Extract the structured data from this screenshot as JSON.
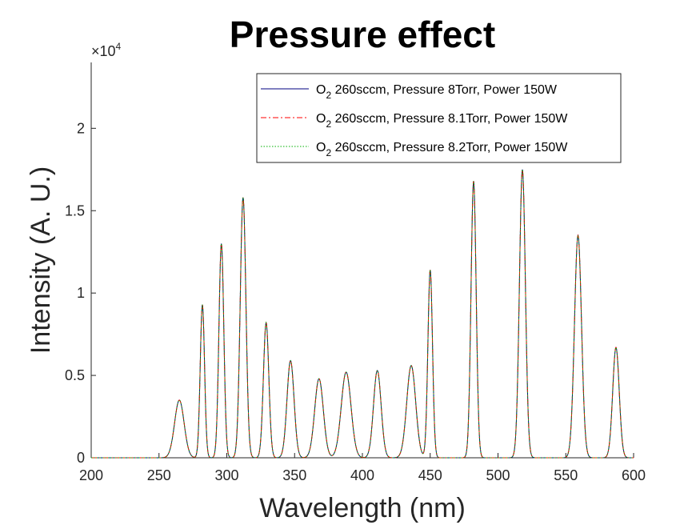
{
  "chart_data": {
    "type": "line",
    "title": "Pressure effect",
    "xlabel": "Wavelength (nm)",
    "ylabel": "Intensity (A. U.)",
    "xlim": [
      200,
      600
    ],
    "ylim": [
      0,
      24000
    ],
    "y_exponent_label": "×10⁴",
    "y_exponent_base": "×10",
    "y_exponent_power": "4",
    "xticks": [
      "200",
      "250",
      "300",
      "350",
      "400",
      "450",
      "500",
      "550",
      "600"
    ],
    "yticks": [
      "0",
      "0.5",
      "1",
      "1.5",
      "2"
    ],
    "xtick_values": [
      200,
      250,
      300,
      350,
      400,
      450,
      500,
      550,
      600
    ],
    "ytick_values": [
      0,
      5000,
      10000,
      15000,
      20000
    ],
    "grid": false,
    "legend_position": "top-right",
    "peaks": [
      {
        "x": 265,
        "y": 3500,
        "w": 3.5
      },
      {
        "x": 282,
        "y": 9300,
        "w": 1.6
      },
      {
        "x": 296,
        "y": 13000,
        "w": 1.8
      },
      {
        "x": 312,
        "y": 15800,
        "w": 2.1
      },
      {
        "x": 329,
        "y": 8200,
        "w": 2.0
      },
      {
        "x": 347,
        "y": 5900,
        "w": 2.6
      },
      {
        "x": 368,
        "y": 4800,
        "w": 3.2
      },
      {
        "x": 388,
        "y": 5200,
        "w": 3.6
      },
      {
        "x": 411,
        "y": 5300,
        "w": 2.8
      },
      {
        "x": 436,
        "y": 5600,
        "w": 3.3
      },
      {
        "x": 450,
        "y": 11400,
        "w": 1.7
      },
      {
        "x": 482,
        "y": 16800,
        "w": 1.9
      },
      {
        "x": 518,
        "y": 17500,
        "w": 2.2
      },
      {
        "x": 559,
        "y": 13500,
        "w": 2.6
      },
      {
        "x": 587,
        "y": 6700,
        "w": 2.4
      }
    ],
    "series": [
      {
        "name_chem": "O",
        "name_sub": "2",
        "name_rest": " 260sccm, Pressure 8Torr, Power 150W",
        "color": "#000080",
        "dash": ""
      },
      {
        "name_chem": "O",
        "name_sub": "2",
        "name_rest": " 260sccm, Pressure 8.1Torr, Power 150W",
        "color": "#ff0000",
        "dash": "7,3,2,3"
      },
      {
        "name_chem": "O",
        "name_sub": "2",
        "name_rest": " 260sccm, Pressure 8.2Torr, Power 150W",
        "color": "#00b000",
        "dash": "1.5,2"
      }
    ]
  }
}
